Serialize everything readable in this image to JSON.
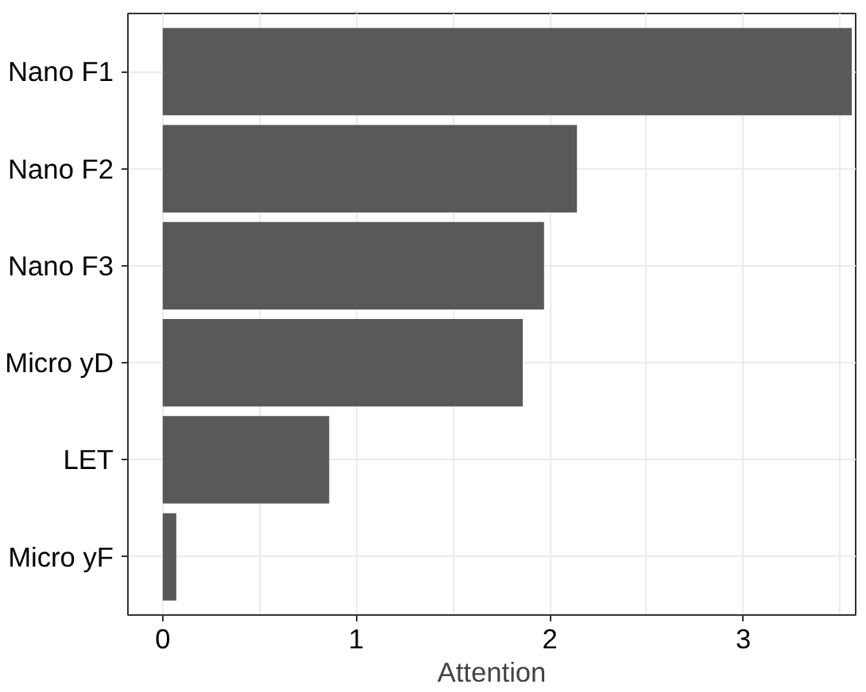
{
  "chart_data": {
    "type": "bar",
    "orientation": "horizontal",
    "xlabel": "Attention",
    "categories": [
      "Nano F1",
      "Nano F2",
      "Nano F3",
      "Micro yD",
      "LET",
      "Micro yF"
    ],
    "values": [
      3.56,
      2.14,
      1.97,
      1.86,
      0.86,
      0.07
    ],
    "color": "#595959",
    "xlim": [
      -0.18,
      3.58
    ],
    "xticks": [
      0,
      1,
      2,
      3
    ],
    "grid": true
  }
}
